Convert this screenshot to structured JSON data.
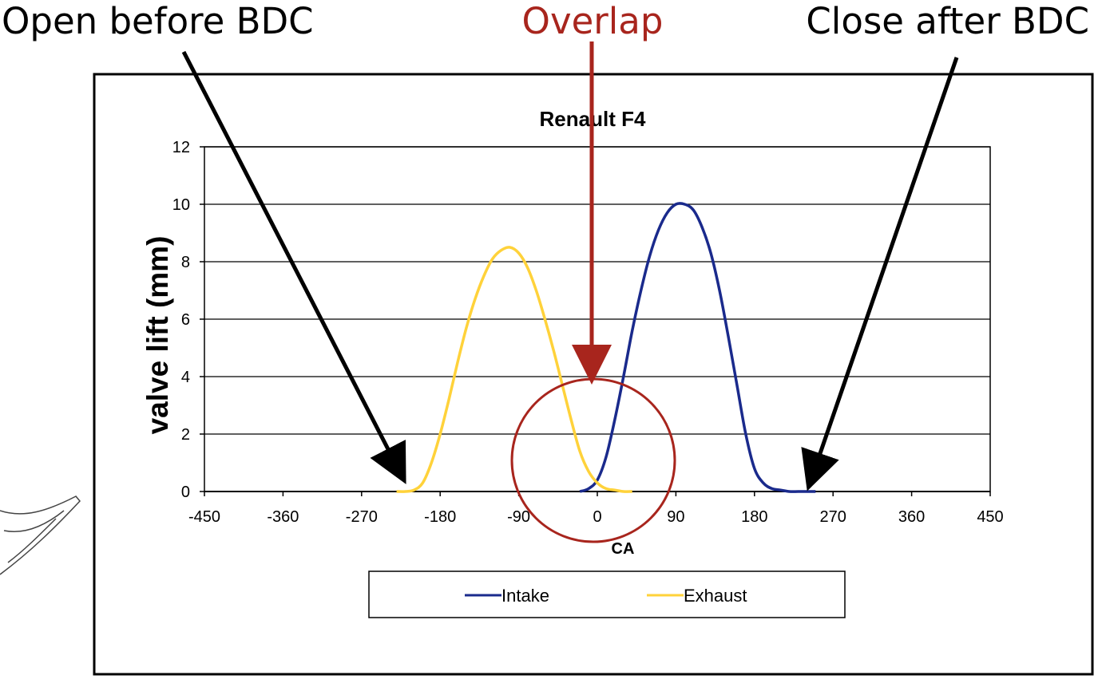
{
  "annotations": {
    "open_label": "Open before BDC",
    "overlap_label": "Overlap",
    "close_label": "Close after BDC"
  },
  "colors": {
    "intake": "#1a2a8c",
    "exhaust": "#ffd23a",
    "overlap": "#a8251d",
    "arrow": "#000000"
  },
  "chart_data": {
    "type": "line",
    "title": "Renault F4",
    "xlabel": "CA",
    "ylabel": "valve lift (mm)",
    "xlim": [
      -450,
      450
    ],
    "ylim": [
      0,
      12
    ],
    "x_ticks": [
      -450,
      -360,
      -270,
      -180,
      -90,
      0,
      90,
      180,
      270,
      360,
      450
    ],
    "x_tick_labels": [
      "-450",
      "-360",
      "-270",
      "-180",
      "-90",
      "0",
      "90",
      "180",
      "270",
      "360",
      "450"
    ],
    "y_ticks": [
      0,
      2,
      4,
      6,
      8,
      10,
      12
    ],
    "y_tick_labels": [
      "0",
      "2",
      "4",
      "6",
      "8",
      "10",
      "12"
    ],
    "grid": "horizontal",
    "legend_position": "bottom",
    "series": [
      {
        "name": "Intake",
        "color": "#1a2a8c",
        "x": [
          -20,
          -10,
          0,
          10,
          20,
          30,
          40,
          50,
          60,
          70,
          80,
          90,
          100,
          110,
          120,
          130,
          140,
          150,
          160,
          170,
          180,
          190,
          200,
          210,
          220,
          230,
          240,
          250
        ],
        "y": [
          0,
          0.1,
          0.4,
          1.2,
          2.5,
          4.0,
          5.6,
          7.0,
          8.2,
          9.1,
          9.7,
          10.0,
          10.0,
          9.8,
          9.2,
          8.3,
          7.0,
          5.4,
          3.7,
          2.0,
          0.8,
          0.3,
          0.1,
          0.05,
          0,
          0,
          0,
          0
        ]
      },
      {
        "name": "Exhaust",
        "color": "#ffd23a",
        "x": [
          -230,
          -220,
          -210,
          -200,
          -190,
          -180,
          -170,
          -160,
          -150,
          -140,
          -130,
          -120,
          -110,
          -100,
          -90,
          -80,
          -70,
          -60,
          -50,
          -40,
          -30,
          -20,
          -10,
          0,
          10,
          20,
          30,
          40
        ],
        "y": [
          0,
          0,
          0.05,
          0.3,
          1.0,
          2.0,
          3.2,
          4.5,
          5.7,
          6.7,
          7.5,
          8.1,
          8.4,
          8.5,
          8.3,
          7.8,
          7.0,
          6.0,
          4.9,
          3.7,
          2.5,
          1.4,
          0.7,
          0.3,
          0.1,
          0.05,
          0,
          0
        ]
      }
    ]
  }
}
